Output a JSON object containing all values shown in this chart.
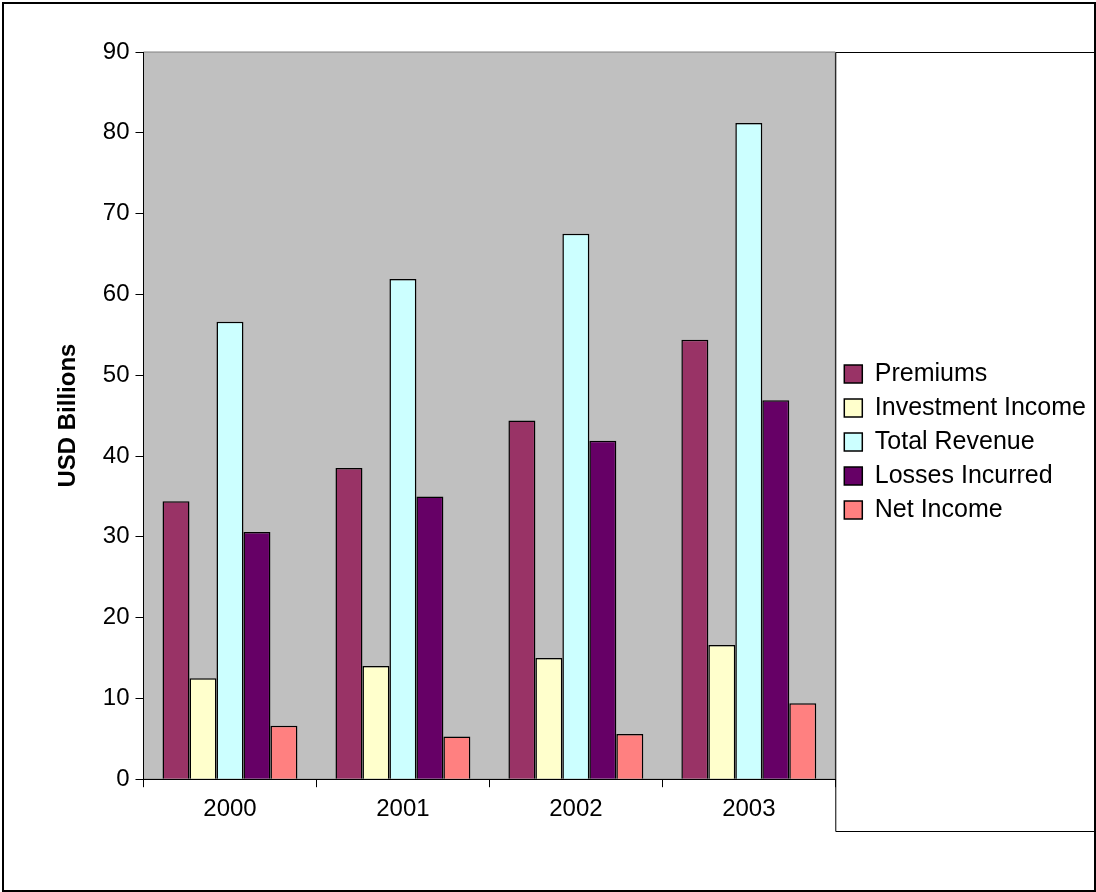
{
  "chart_data": {
    "type": "bar",
    "ylabel": "USD Billions",
    "categories": [
      "2000",
      "2001",
      "2002",
      "2003"
    ],
    "series": [
      {
        "name": "Premiums",
        "color": "#993366",
        "values": [
          34.4,
          38.5,
          44.4,
          54.4
        ]
      },
      {
        "name": "Investment Income",
        "color": "#ffffcc",
        "values": [
          12.5,
          14.0,
          15.0,
          16.6
        ]
      },
      {
        "name": "Total Revenue",
        "color": "#ccffff",
        "values": [
          56.6,
          61.9,
          67.5,
          81.2
        ]
      },
      {
        "name": "Losses Incurred",
        "color": "#660066",
        "values": [
          30.6,
          35.0,
          41.9,
          46.9
        ]
      },
      {
        "name": "Net Income",
        "color": "#ff8080",
        "values": [
          6.6,
          5.3,
          5.6,
          9.4
        ]
      }
    ],
    "ylim": [
      0,
      90
    ],
    "yticks": [
      0,
      10,
      20,
      30,
      40,
      50,
      60,
      70,
      80,
      90
    ],
    "grid": false,
    "legend": "right"
  }
}
